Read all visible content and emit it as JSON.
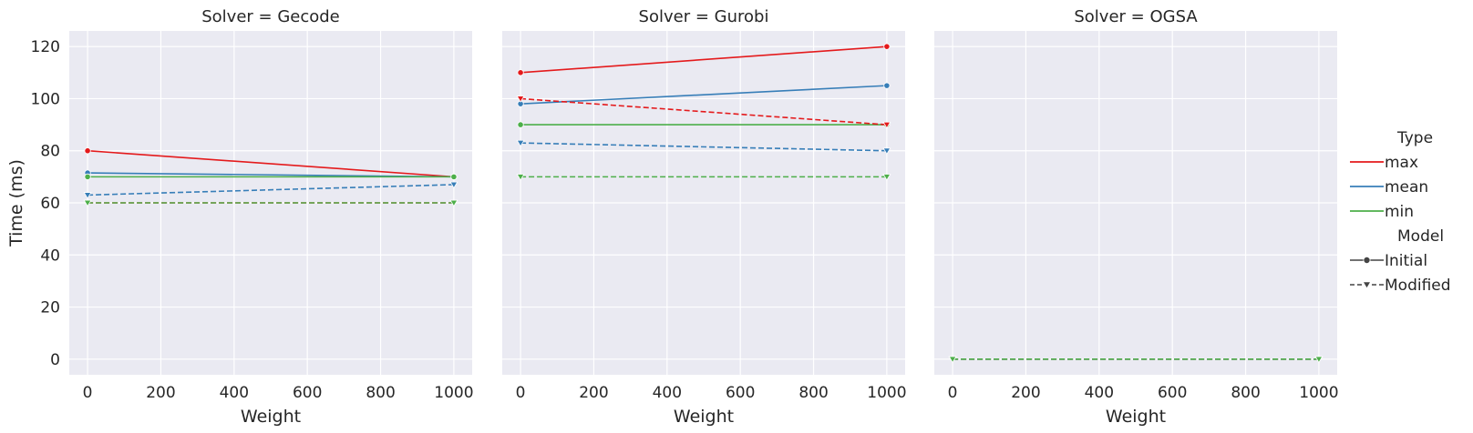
{
  "chart_data": [
    {
      "type": "line",
      "title": "Solver = Gecode",
      "xlabel": "Weight",
      "ylabel": "Time (ms)",
      "xlim": [
        -50,
        1050
      ],
      "ylim": [
        -6,
        126
      ],
      "xticks": [
        0,
        200,
        400,
        600,
        800,
        1000
      ],
      "yticks": [
        0,
        20,
        40,
        60,
        80,
        100,
        120
      ],
      "series": [
        {
          "type": "max",
          "model": "Initial",
          "x": [
            0,
            1000
          ],
          "y": [
            80,
            70
          ]
        },
        {
          "type": "mean",
          "model": "Initial",
          "x": [
            0,
            1000
          ],
          "y": [
            71.5,
            70
          ]
        },
        {
          "type": "min",
          "model": "Initial",
          "x": [
            0,
            1000
          ],
          "y": [
            70,
            70
          ]
        },
        {
          "type": "max",
          "model": "Modified",
          "x": [
            0,
            1000
          ],
          "y": [
            60,
            60
          ]
        },
        {
          "type": "mean",
          "model": "Modified",
          "x": [
            0,
            1000
          ],
          "y": [
            63,
            67
          ]
        },
        {
          "type": "min",
          "model": "Modified",
          "x": [
            0,
            1000
          ],
          "y": [
            60,
            60
          ]
        }
      ]
    },
    {
      "type": "line",
      "title": "Solver = Gurobi",
      "xlabel": "Weight",
      "ylabel": "",
      "xlim": [
        -50,
        1050
      ],
      "ylim": [
        -6,
        126
      ],
      "xticks": [
        0,
        200,
        400,
        600,
        800,
        1000
      ],
      "yticks": [
        0,
        20,
        40,
        60,
        80,
        100,
        120
      ],
      "series": [
        {
          "type": "max",
          "model": "Initial",
          "x": [
            0,
            1000
          ],
          "y": [
            110,
            120
          ]
        },
        {
          "type": "mean",
          "model": "Initial",
          "x": [
            0,
            1000
          ],
          "y": [
            98,
            105
          ]
        },
        {
          "type": "min",
          "model": "Initial",
          "x": [
            0,
            1000
          ],
          "y": [
            90,
            90
          ]
        },
        {
          "type": "max",
          "model": "Modified",
          "x": [
            0,
            1000
          ],
          "y": [
            100,
            90
          ]
        },
        {
          "type": "mean",
          "model": "Modified",
          "x": [
            0,
            1000
          ],
          "y": [
            83,
            80
          ]
        },
        {
          "type": "min",
          "model": "Modified",
          "x": [
            0,
            1000
          ],
          "y": [
            70,
            70
          ]
        }
      ]
    },
    {
      "type": "line",
      "title": "Solver = OGSA",
      "xlabel": "Weight",
      "ylabel": "",
      "xlim": [
        -50,
        1050
      ],
      "ylim": [
        -6,
        126
      ],
      "xticks": [
        0,
        200,
        400,
        600,
        800,
        1000
      ],
      "yticks": [
        0,
        20,
        40,
        60,
        80,
        100,
        120
      ],
      "series": [
        {
          "type": "max",
          "model": "Modified",
          "x": [
            0,
            1000
          ],
          "y": [
            0,
            0
          ]
        },
        {
          "type": "mean",
          "model": "Modified",
          "x": [
            0,
            1000
          ],
          "y": [
            0,
            0
          ]
        },
        {
          "type": "min",
          "model": "Modified",
          "x": [
            0,
            1000
          ],
          "y": [
            0,
            0
          ]
        }
      ]
    }
  ],
  "legend": {
    "type_title": "Type",
    "types": [
      {
        "label": "max",
        "color": "#e41a1c"
      },
      {
        "label": "mean",
        "color": "#377eb8"
      },
      {
        "label": "min",
        "color": "#4daf4a"
      }
    ],
    "model_title": "Model",
    "models": [
      {
        "label": "Initial",
        "marker": "circle",
        "dash": "solid"
      },
      {
        "label": "Modified",
        "marker": "triangle-down",
        "dash": "dashed"
      }
    ],
    "placement": "right"
  },
  "grid": true,
  "colors": {
    "background": "#eaeaf2",
    "gridline": "#ffffff",
    "text": "#262626"
  }
}
